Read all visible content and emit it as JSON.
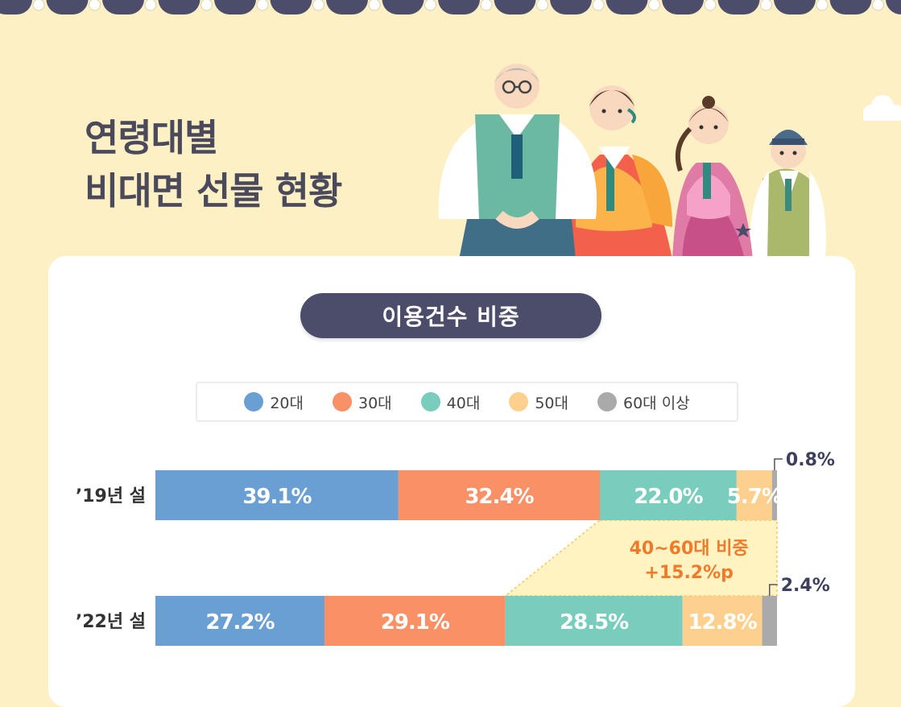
{
  "title": {
    "line1": "연령대별",
    "line2": "비대면 선물 현황"
  },
  "chart_title": "이용건수 비중",
  "colors": {
    "background": "#fdf0c4",
    "card": "#ffffff",
    "title_pill": "#4b4d6b",
    "annotation_text": "#f07a2a",
    "annotation_fill": "#fff3c2"
  },
  "chart_data": {
    "type": "bar",
    "orientation": "horizontal",
    "stacked": true,
    "title": "이용건수 비중",
    "xlabel": "",
    "ylabel": "",
    "xlim": [
      0,
      100
    ],
    "legend_position": "top",
    "categories": [
      "’19년 설",
      "’22년 설"
    ],
    "series": [
      {
        "name": "20대",
        "color": "#6a9fd4",
        "values": [
          39.1,
          27.2
        ],
        "labels": [
          "39.1%",
          "27.2%"
        ]
      },
      {
        "name": "30대",
        "color": "#f99066",
        "values": [
          32.4,
          29.1
        ],
        "labels": [
          "32.4%",
          "29.1%"
        ]
      },
      {
        "name": "40대",
        "color": "#78cdbd",
        "values": [
          22.0,
          28.5
        ],
        "labels": [
          "22.0%",
          "28.5%"
        ]
      },
      {
        "name": "50대",
        "color": "#fdd08d",
        "values": [
          5.7,
          12.8
        ],
        "labels": [
          "5.7%",
          "12.8%"
        ]
      },
      {
        "name": "60대 이상",
        "color": "#aaaaaa",
        "values": [
          0.8,
          2.4
        ],
        "labels": [
          "0.8%",
          "2.4%"
        ]
      }
    ],
    "annotation": {
      "line1": "40~60대 비중",
      "line2": "+15.2%p"
    }
  }
}
